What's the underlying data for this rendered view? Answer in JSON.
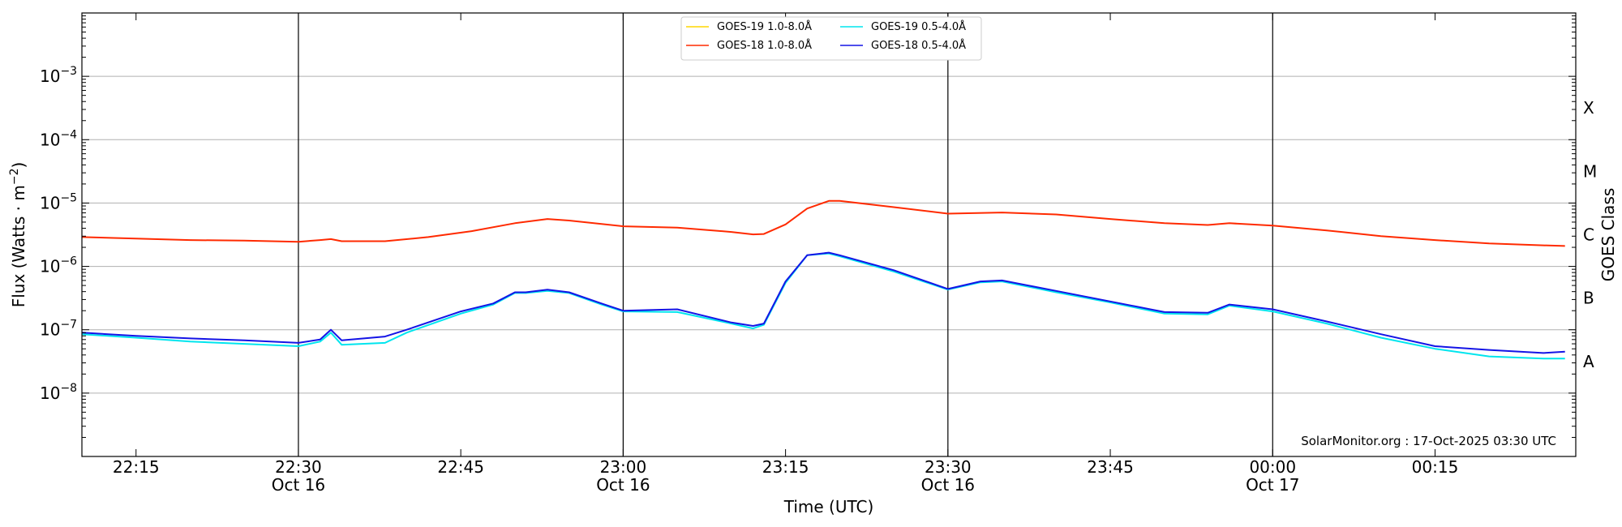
{
  "chart_data": {
    "type": "line",
    "title": "",
    "xlabel": "Time (UTC)",
    "ylabel": "Flux (Watts · m",
    "ylabel_sup": "−2",
    "ylabel_end": ")",
    "right_label": "GOES Class",
    "y_scale": "log",
    "ylim": [
      1e-09,
      0.01
    ],
    "xlim": [
      "2025-10-16 22:10",
      "2025-10-17 00:28"
    ],
    "grid": "horizontal at decades",
    "y_ticks": [
      {
        "value": 1e-08,
        "base": "10",
        "exp": "−8"
      },
      {
        "value": 1e-07,
        "base": "10",
        "exp": "−7"
      },
      {
        "value": 1e-06,
        "base": "10",
        "exp": "−6"
      },
      {
        "value": 1e-05,
        "base": "10",
        "exp": "−5"
      },
      {
        "value": 0.0001,
        "base": "10",
        "exp": "−4"
      },
      {
        "value": 0.001,
        "base": "10",
        "exp": "−3"
      }
    ],
    "x_ticks": [
      {
        "time": "2025-10-16 22:15",
        "label": "22:15",
        "date": ""
      },
      {
        "time": "2025-10-16 22:30",
        "label": "22:30",
        "date": "Oct 16"
      },
      {
        "time": "2025-10-16 22:45",
        "label": "22:45",
        "date": ""
      },
      {
        "time": "2025-10-16 23:00",
        "label": "23:00",
        "date": "Oct 16"
      },
      {
        "time": "2025-10-16 23:15",
        "label": "23:15",
        "date": ""
      },
      {
        "time": "2025-10-16 23:30",
        "label": "23:30",
        "date": "Oct 16"
      },
      {
        "time": "2025-10-16 23:45",
        "label": "23:45",
        "date": ""
      },
      {
        "time": "2025-10-17 00:00",
        "label": "00:00",
        "date": "Oct 17"
      },
      {
        "time": "2025-10-17 00:15",
        "label": "00:15",
        "date": ""
      }
    ],
    "vertical_lines": [
      "2025-10-16 22:30",
      "2025-10-16 23:00",
      "2025-10-16 23:30",
      "2025-10-17 00:00"
    ],
    "class_labels": [
      {
        "label": "A",
        "value": 3.16e-08
      },
      {
        "label": "B",
        "value": 3.16e-07
      },
      {
        "label": "C",
        "value": 3.16e-06
      },
      {
        "label": "M",
        "value": 3.16e-05
      },
      {
        "label": "X",
        "value": 0.000316
      }
    ],
    "legend_position": "top-center",
    "credit": "SolarMonitor.org : 17-Oct-2025 03:30 UTC",
    "series": [
      {
        "name": "GOES-19 1.0-8.0Å",
        "color": "#ffd700",
        "x": [],
        "y": []
      },
      {
        "name": "GOES-18 1.0-8.0Å",
        "color": "#ff2a00",
        "x": [
          "2025-10-16 22:10",
          "2025-10-16 22:15",
          "2025-10-16 22:20",
          "2025-10-16 22:25",
          "2025-10-16 22:30",
          "2025-10-16 22:32",
          "2025-10-16 22:33",
          "2025-10-16 22:34",
          "2025-10-16 22:38",
          "2025-10-16 22:42",
          "2025-10-16 22:46",
          "2025-10-16 22:50",
          "2025-10-16 22:53",
          "2025-10-16 22:55",
          "2025-10-16 23:00",
          "2025-10-16 23:05",
          "2025-10-16 23:10",
          "2025-10-16 23:12",
          "2025-10-16 23:13",
          "2025-10-16 23:15",
          "2025-10-16 23:17",
          "2025-10-16 23:19",
          "2025-10-16 23:20",
          "2025-10-16 23:25",
          "2025-10-16 23:30",
          "2025-10-16 23:35",
          "2025-10-16 23:40",
          "2025-10-16 23:45",
          "2025-10-16 23:50",
          "2025-10-16 23:54",
          "2025-10-16 23:56",
          "2025-10-17 00:00",
          "2025-10-17 00:05",
          "2025-10-17 00:10",
          "2025-10-17 00:15",
          "2025-10-17 00:20",
          "2025-10-17 00:25",
          "2025-10-17 00:27"
        ],
        "y": [
          2.9e-06,
          2.75e-06,
          2.6e-06,
          2.55e-06,
          2.45e-06,
          2.6e-06,
          2.7e-06,
          2.5e-06,
          2.5e-06,
          2.9e-06,
          3.6e-06,
          4.8e-06,
          5.6e-06,
          5.3e-06,
          4.3e-06,
          4.1e-06,
          3.5e-06,
          3.2e-06,
          3.25e-06,
          4.6e-06,
          8.2e-06,
          1.08e-05,
          1.08e-05,
          8.6e-06,
          6.8e-06,
          7.1e-06,
          6.6e-06,
          5.6e-06,
          4.8e-06,
          4.5e-06,
          4.8e-06,
          4.4e-06,
          3.7e-06,
          3e-06,
          2.6e-06,
          2.3e-06,
          2.15e-06,
          2.1e-06
        ]
      },
      {
        "name": "GOES-19 0.5-4.0Å",
        "color": "#00e5ee",
        "x": [
          "2025-10-16 22:10",
          "2025-10-16 22:15",
          "2025-10-16 22:20",
          "2025-10-16 22:25",
          "2025-10-16 22:30",
          "2025-10-16 22:32",
          "2025-10-16 22:33",
          "2025-10-16 22:34",
          "2025-10-16 22:38",
          "2025-10-16 22:40",
          "2025-10-16 22:45",
          "2025-10-16 22:48",
          "2025-10-16 22:50",
          "2025-10-16 22:51",
          "2025-10-16 22:53",
          "2025-10-16 22:55",
          "2025-10-16 22:58",
          "2025-10-16 23:00",
          "2025-10-16 23:05",
          "2025-10-16 23:10",
          "2025-10-16 23:12",
          "2025-10-16 23:13",
          "2025-10-16 23:15",
          "2025-10-16 23:17",
          "2025-10-16 23:19",
          "2025-10-16 23:20",
          "2025-10-16 23:25",
          "2025-10-16 23:30",
          "2025-10-16 23:33",
          "2025-10-16 23:35",
          "2025-10-16 23:40",
          "2025-10-16 23:45",
          "2025-10-16 23:50",
          "2025-10-16 23:54",
          "2025-10-16 23:56",
          "2025-10-17 00:00",
          "2025-10-17 00:05",
          "2025-10-17 00:10",
          "2025-10-17 00:15",
          "2025-10-17 00:20",
          "2025-10-17 00:25",
          "2025-10-17 00:27"
        ],
        "y": [
          8.5e-08,
          7.5e-08,
          6.5e-08,
          6e-08,
          5.5e-08,
          6.5e-08,
          9e-08,
          5.8e-08,
          6.2e-08,
          9e-08,
          1.8e-07,
          2.5e-07,
          3.8e-07,
          3.8e-07,
          4.1e-07,
          3.8e-07,
          2.5e-07,
          1.95e-07,
          1.9e-07,
          1.25e-07,
          1.05e-07,
          1.2e-07,
          5.5e-07,
          1.5e-06,
          1.6e-06,
          1.45e-06,
          8.3e-07,
          4.3e-07,
          5.6e-07,
          5.8e-07,
          3.9e-07,
          2.7e-07,
          1.8e-07,
          1.75e-07,
          2.4e-07,
          1.95e-07,
          1.25e-07,
          7.5e-08,
          5e-08,
          3.8e-08,
          3.5e-08,
          3.5e-08
        ]
      },
      {
        "name": "GOES-18 0.5-4.0Å",
        "color": "#1414e6",
        "x": [
          "2025-10-16 22:10",
          "2025-10-16 22:15",
          "2025-10-16 22:20",
          "2025-10-16 22:25",
          "2025-10-16 22:30",
          "2025-10-16 22:32",
          "2025-10-16 22:33",
          "2025-10-16 22:34",
          "2025-10-16 22:38",
          "2025-10-16 22:40",
          "2025-10-16 22:45",
          "2025-10-16 22:48",
          "2025-10-16 22:50",
          "2025-10-16 22:51",
          "2025-10-16 22:53",
          "2025-10-16 22:55",
          "2025-10-16 22:58",
          "2025-10-16 23:00",
          "2025-10-16 23:05",
          "2025-10-16 23:10",
          "2025-10-16 23:12",
          "2025-10-16 23:13",
          "2025-10-16 23:15",
          "2025-10-16 23:17",
          "2025-10-16 23:19",
          "2025-10-16 23:20",
          "2025-10-16 23:25",
          "2025-10-16 23:30",
          "2025-10-16 23:33",
          "2025-10-16 23:35",
          "2025-10-16 23:40",
          "2025-10-16 23:45",
          "2025-10-16 23:50",
          "2025-10-16 23:54",
          "2025-10-16 23:56",
          "2025-10-17 00:00",
          "2025-10-17 00:05",
          "2025-10-17 00:10",
          "2025-10-17 00:15",
          "2025-10-17 00:20",
          "2025-10-17 00:25",
          "2025-10-17 00:27"
        ],
        "y": [
          9e-08,
          8e-08,
          7.3e-08,
          6.8e-08,
          6.2e-08,
          7e-08,
          1e-07,
          6.8e-08,
          7.8e-08,
          1e-07,
          1.95e-07,
          2.6e-07,
          3.9e-07,
          3.9e-07,
          4.3e-07,
          3.9e-07,
          2.6e-07,
          2e-07,
          2.1e-07,
          1.3e-07,
          1.15e-07,
          1.25e-07,
          5.8e-07,
          1.5e-06,
          1.65e-06,
          1.5e-06,
          8.7e-07,
          4.4e-07,
          5.8e-07,
          6e-07,
          4.1e-07,
          2.8e-07,
          1.9e-07,
          1.85e-07,
          2.5e-07,
          2.1e-07,
          1.35e-07,
          8.5e-08,
          5.5e-08,
          4.8e-08,
          4.3e-08,
          4.5e-08
        ]
      }
    ]
  }
}
